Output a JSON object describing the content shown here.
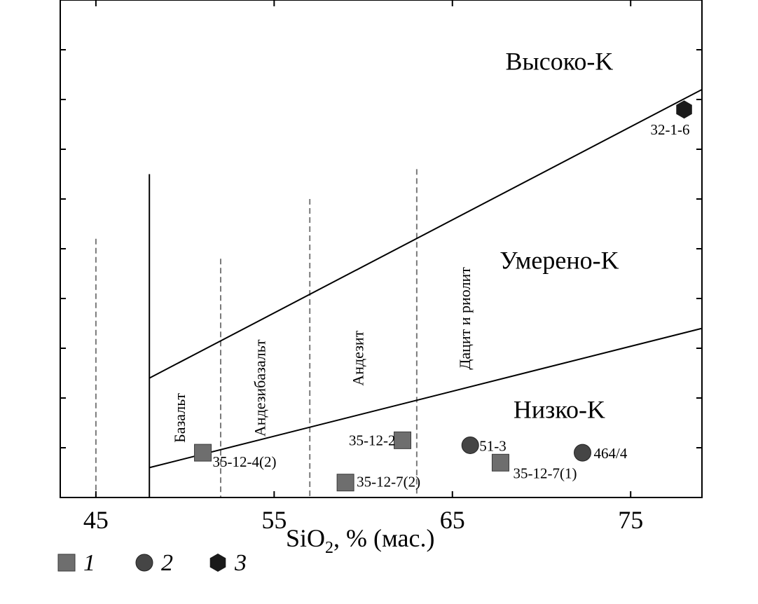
{
  "chart_data": {
    "type": "scatter",
    "xlabel_main": "SiO",
    "xlabel_sub": "2",
    "xlabel_rest": ", % (мас.)",
    "xlim": [
      43,
      79
    ],
    "ylim": [
      0,
      10
    ],
    "x_ticks": [
      45,
      55,
      65,
      75
    ],
    "x_tick_labels": [
      "45",
      "55",
      "65",
      "75"
    ],
    "y_tick_values": [
      1,
      2,
      3,
      4,
      5,
      6,
      7,
      8,
      9
    ],
    "log_scale": false,
    "grid": false,
    "boundaries": {
      "solid_vertical_x": 48,
      "solid_vertical_top_y": 6.5,
      "dashed_verticals": [
        {
          "x": 45,
          "y_top": 5.2
        },
        {
          "x": 52,
          "y_top": 4.8
        },
        {
          "x": 57,
          "y_top": 6.0
        },
        {
          "x": 63,
          "y_top": 6.6
        }
      ],
      "lines": [
        {
          "x": [
            48,
            79
          ],
          "y": [
            2.4,
            8.2
          ]
        },
        {
          "x": [
            48,
            79
          ],
          "y": [
            0.6,
            3.4
          ]
        }
      ]
    },
    "fields": [
      {
        "label": "Высоко-K",
        "x": 71,
        "y": 8.6
      },
      {
        "label": "Умерено-K",
        "x": 71,
        "y": 4.6
      },
      {
        "label": "Низко-K",
        "x": 71,
        "y": 1.6
      }
    ],
    "rock_names": [
      {
        "label": "Базальт",
        "x": 50.0,
        "y": 1.6
      },
      {
        "label": "Андезибазальт",
        "x": 54.5,
        "y": 2.2
      },
      {
        "label": "Андезит",
        "x": 60.0,
        "y": 2.8
      },
      {
        "label": "Дацит и риолит",
        "x": 66.0,
        "y": 3.6
      }
    ],
    "series": [
      {
        "name": "1",
        "marker": "square",
        "color": "#6e6e6e",
        "points": [
          {
            "x": 51.0,
            "y": 0.9,
            "label": "35-12-4(2)"
          },
          {
            "x": 59.0,
            "y": 0.3,
            "label": "35-12-7(2)"
          },
          {
            "x": 62.2,
            "y": 1.15,
            "label": "35-12-2"
          },
          {
            "x": 67.7,
            "y": 0.7,
            "label": "35-12-7(1)"
          }
        ]
      },
      {
        "name": "2",
        "marker": "circle",
        "color": "#454545",
        "points": [
          {
            "x": 66.0,
            "y": 1.05,
            "label": "51-3"
          },
          {
            "x": 72.3,
            "y": 0.9,
            "label": "464/4"
          }
        ]
      },
      {
        "name": "3",
        "marker": "hexagon",
        "color": "#1a1a1a",
        "points": [
          {
            "x": 78.0,
            "y": 7.8,
            "label": "32-1-6"
          }
        ]
      }
    ]
  }
}
